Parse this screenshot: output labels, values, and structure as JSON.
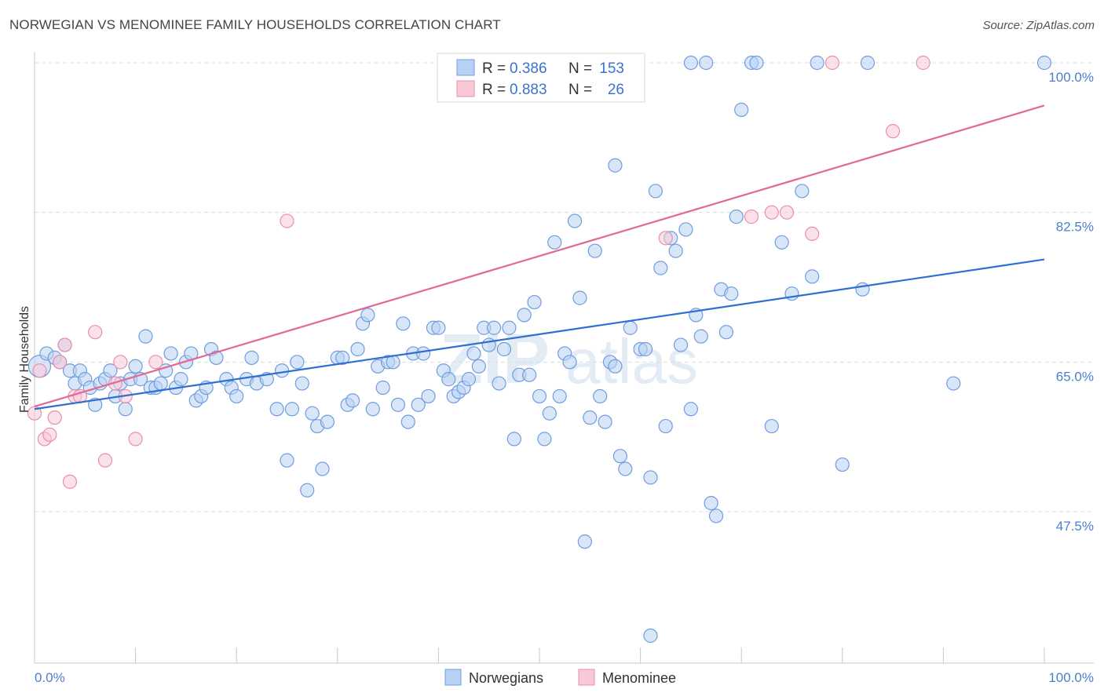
{
  "title": "NORWEGIAN VS MENOMINEE FAMILY HOUSEHOLDS CORRELATION CHART",
  "source": "Source: ZipAtlas.com",
  "watermark": {
    "zip": "ZIP",
    "atlas": "atlas"
  },
  "chart_data": {
    "type": "scatter",
    "ylabel": "Family Households",
    "xlabel": "",
    "xlim": [
      0,
      100
    ],
    "ylim": [
      32,
      102
    ],
    "x_tick_labels": {
      "left": "0.0%",
      "right": "100.0%"
    },
    "y_ticks": [
      {
        "value": 100,
        "label": "100.0%"
      },
      {
        "value": 82.5,
        "label": "82.5%"
      },
      {
        "value": 65,
        "label": "65.0%"
      },
      {
        "value": 47.5,
        "label": "47.5%"
      }
    ],
    "stats": [
      {
        "r_label": "R =",
        "r": "0.386",
        "n_label": "N =",
        "n": "153"
      },
      {
        "r_label": "R =",
        "r": "0.883",
        "n_label": "N =",
        "n": "26"
      }
    ],
    "series": [
      {
        "name": "Norwegians",
        "color": "#6f9de0",
        "fill": "#b9d1f3",
        "line_color": "#2f6fd0",
        "trend": [
          [
            0,
            59.5
          ],
          [
            100,
            77.0
          ]
        ],
        "points": [
          [
            0.5,
            64.5
          ],
          [
            1.2,
            66
          ],
          [
            2,
            65.5
          ],
          [
            2.5,
            65
          ],
          [
            3,
            67
          ],
          [
            3.5,
            64
          ],
          [
            4,
            62.5
          ],
          [
            4.5,
            64
          ],
          [
            5,
            63
          ],
          [
            5.5,
            62
          ],
          [
            6,
            60
          ],
          [
            6.5,
            62.5
          ],
          [
            7,
            63
          ],
          [
            7.5,
            64
          ],
          [
            8,
            61
          ],
          [
            8.5,
            62.5
          ],
          [
            9,
            59.5
          ],
          [
            9.5,
            63
          ],
          [
            10,
            64.5
          ],
          [
            10.5,
            63
          ],
          [
            11,
            68
          ],
          [
            11.5,
            62
          ],
          [
            12,
            62
          ],
          [
            12.5,
            62.5
          ],
          [
            13,
            64
          ],
          [
            13.5,
            66
          ],
          [
            14,
            62
          ],
          [
            14.5,
            63
          ],
          [
            15,
            65
          ],
          [
            15.5,
            66
          ],
          [
            16,
            60.5
          ],
          [
            16.5,
            61
          ],
          [
            17,
            62
          ],
          [
            17.5,
            66.5
          ],
          [
            18,
            65.5
          ],
          [
            19,
            63
          ],
          [
            19.5,
            62
          ],
          [
            20,
            61
          ],
          [
            21,
            63
          ],
          [
            21.5,
            65.5
          ],
          [
            22,
            62.5
          ],
          [
            23,
            63
          ],
          [
            24,
            59.5
          ],
          [
            24.5,
            64
          ],
          [
            25,
            53.5
          ],
          [
            25.5,
            59.5
          ],
          [
            26,
            65
          ],
          [
            26.5,
            62.5
          ],
          [
            27,
            50
          ],
          [
            27.5,
            59
          ],
          [
            28,
            57.5
          ],
          [
            28.5,
            52.5
          ],
          [
            29,
            58
          ],
          [
            30,
            65.5
          ],
          [
            30.5,
            65.5
          ],
          [
            31,
            60
          ],
          [
            31.5,
            60.5
          ],
          [
            32,
            66.5
          ],
          [
            32.5,
            69.5
          ],
          [
            33,
            70.5
          ],
          [
            33.5,
            59.5
          ],
          [
            34,
            64.5
          ],
          [
            34.5,
            62
          ],
          [
            35,
            65
          ],
          [
            35.5,
            65
          ],
          [
            36,
            60
          ],
          [
            36.5,
            69.5
          ],
          [
            37,
            58
          ],
          [
            37.5,
            66
          ],
          [
            38,
            60
          ],
          [
            38.5,
            66
          ],
          [
            39,
            61
          ],
          [
            39.5,
            69
          ],
          [
            40,
            69
          ],
          [
            40.5,
            64
          ],
          [
            41,
            63
          ],
          [
            41.5,
            61
          ],
          [
            42,
            61.5
          ],
          [
            42.5,
            62
          ],
          [
            43,
            63
          ],
          [
            43.5,
            66
          ],
          [
            44,
            64.5
          ],
          [
            44.5,
            69
          ],
          [
            45,
            67
          ],
          [
            45.5,
            69
          ],
          [
            46,
            62.5
          ],
          [
            46.5,
            66.5
          ],
          [
            47,
            69
          ],
          [
            47.5,
            56
          ],
          [
            48,
            63.5
          ],
          [
            48.5,
            70.5
          ],
          [
            49,
            63.5
          ],
          [
            49.5,
            72
          ],
          [
            50,
            61
          ],
          [
            50.5,
            56
          ],
          [
            51,
            59
          ],
          [
            51.5,
            79
          ],
          [
            52,
            61
          ],
          [
            52.5,
            66
          ],
          [
            53,
            65
          ],
          [
            53.5,
            81.5
          ],
          [
            54,
            72.5
          ],
          [
            54.5,
            44
          ],
          [
            55,
            58.5
          ],
          [
            55.5,
            78
          ],
          [
            56,
            61
          ],
          [
            56.5,
            58
          ],
          [
            57,
            65
          ],
          [
            57.5,
            64.5
          ],
          [
            57.5,
            88
          ],
          [
            58,
            54
          ],
          [
            58.5,
            52.5
          ],
          [
            59,
            69
          ],
          [
            60,
            66.5
          ],
          [
            60.5,
            66.5
          ],
          [
            61,
            51.5
          ],
          [
            61.5,
            85
          ],
          [
            62,
            76
          ],
          [
            62.5,
            57.5
          ],
          [
            63,
            79.5
          ],
          [
            63.5,
            78
          ],
          [
            64,
            67
          ],
          [
            64.5,
            80.5
          ],
          [
            65,
            59.5
          ],
          [
            65.5,
            70.5
          ],
          [
            66,
            68
          ],
          [
            67,
            48.5
          ],
          [
            67.5,
            47
          ],
          [
            68,
            73.5
          ],
          [
            68.5,
            68.5
          ],
          [
            69,
            73
          ],
          [
            69.5,
            82
          ],
          [
            70,
            94.5
          ],
          [
            71,
            100
          ],
          [
            73,
            57.5
          ],
          [
            74,
            79
          ],
          [
            75,
            73
          ],
          [
            76,
            85
          ],
          [
            77,
            75
          ],
          [
            80,
            53
          ],
          [
            82,
            73.5
          ],
          [
            91,
            62.5
          ],
          [
            100,
            100
          ],
          [
            65,
            100
          ],
          [
            66.5,
            100
          ],
          [
            71.5,
            100
          ],
          [
            77.5,
            100
          ],
          [
            82.5,
            100
          ],
          [
            61,
            33
          ]
        ]
      },
      {
        "name": "Menominee",
        "color": "#e88fac",
        "fill": "#f8c8d8",
        "line_color": "#e06a92",
        "trend": [
          [
            0,
            59.8
          ],
          [
            100,
            95.0
          ]
        ],
        "points": [
          [
            0,
            59
          ],
          [
            0.5,
            64
          ],
          [
            1,
            56
          ],
          [
            1.5,
            56.5
          ],
          [
            2,
            58.5
          ],
          [
            2.5,
            65
          ],
          [
            3,
            67
          ],
          [
            3.5,
            51
          ],
          [
            4,
            61
          ],
          [
            4.5,
            61
          ],
          [
            6,
            68.5
          ],
          [
            7,
            53.5
          ],
          [
            8,
            62.5
          ],
          [
            8.5,
            65
          ],
          [
            9,
            61
          ],
          [
            10,
            56
          ],
          [
            12,
            65
          ],
          [
            25,
            81.5
          ],
          [
            62.5,
            79.5
          ],
          [
            71,
            82
          ],
          [
            73,
            82.5
          ],
          [
            74.5,
            82.5
          ],
          [
            77,
            80
          ],
          [
            79,
            100
          ],
          [
            85,
            92
          ],
          [
            88,
            100
          ]
        ]
      }
    ]
  }
}
